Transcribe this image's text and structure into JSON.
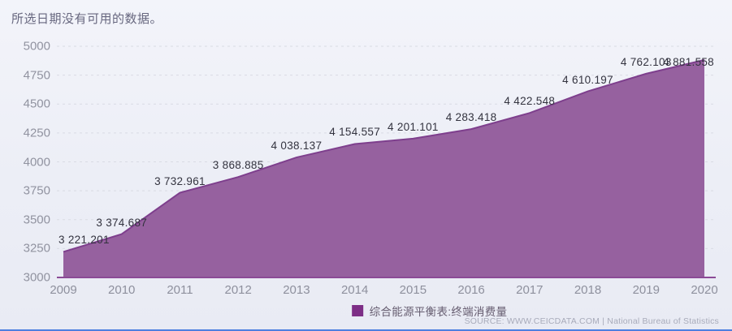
{
  "page": {
    "notice": "所选日期没有可用的数据。",
    "source": "SOURCE: WWW.CEICDATA.COM | National Bureau of Statistics"
  },
  "legend": {
    "label": "综合能源平衡表:终端消费量",
    "swatch_color": "#7d2e86"
  },
  "colors": {
    "area_fill": "#96619f",
    "area_stroke": "#7e3f8d",
    "axis_line": "#8b4b96",
    "gridline": "#d9dbe4",
    "tick_text": "#9193a0",
    "data_label_text": "#33333f"
  },
  "chart_data": {
    "type": "area",
    "series_name": "综合能源平衡表:终端消费量",
    "x": [
      2009,
      2010,
      2011,
      2012,
      2013,
      2014,
      2015,
      2016,
      2017,
      2018,
      2019,
      2020
    ],
    "values": [
      3221.201,
      3374.687,
      3732.961,
      3868.885,
      4038.137,
      4154.557,
      4201.101,
      4283.418,
      4422.548,
      4610.197,
      4762.103,
      4881.558
    ],
    "point_labels": [
      "3 221.201",
      "3 374.687",
      "3 732.961",
      "3 868.885",
      "4 038.137",
      "4 154.557",
      "4 201.101",
      "4 283.418",
      "4 422.548",
      "4 610.197",
      "4 762.103",
      "4 881.558"
    ],
    "ylim": [
      3000,
      5000
    ],
    "yticks": [
      3000,
      3250,
      3500,
      3750,
      4000,
      4250,
      4500,
      4750,
      5000
    ],
    "grid": "horizontal-dashed",
    "legend_position": "bottom-center",
    "xlabel": "",
    "ylabel": "",
    "title": ""
  }
}
